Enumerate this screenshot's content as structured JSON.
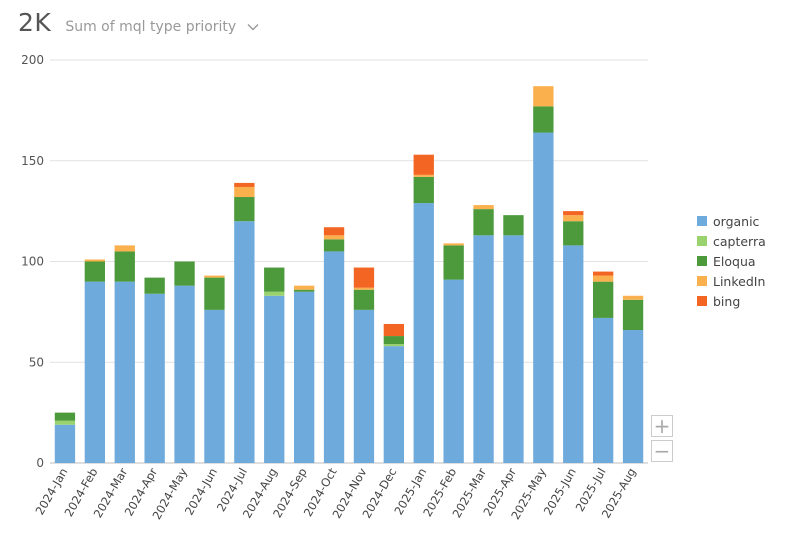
{
  "header": {
    "total": "2K",
    "metric_label": "Sum of mql type priority"
  },
  "zoom": {
    "in_label": "+",
    "out_label": "−"
  },
  "chart_data": {
    "type": "bar",
    "stacked": true,
    "categories": [
      "2024-Jan",
      "2024-Feb",
      "2024-Mar",
      "2024-Apr",
      "2024-May",
      "2024-Jun",
      "2024-Jul",
      "2024-Aug",
      "2024-Sep",
      "2024-Oct",
      "2024-Nov",
      "2024-Dec",
      "2025-Jan",
      "2025-Feb",
      "2025-Mar",
      "2025-Apr",
      "2025-May",
      "2025-Jun",
      "2025-Jul",
      "2025-Aug"
    ],
    "series": [
      {
        "name": "organic",
        "color": "#6eaadc",
        "values": [
          19,
          90,
          90,
          84,
          88,
          76,
          120,
          83,
          85,
          105,
          76,
          58,
          129,
          91,
          113,
          113,
          164,
          108,
          72,
          66
        ]
      },
      {
        "name": "capterra",
        "color": "#9ad26e",
        "values": [
          2,
          0,
          0,
          0,
          0,
          0,
          0,
          2,
          0,
          0,
          0,
          1,
          0,
          0,
          0,
          0,
          0,
          0,
          0,
          0
        ]
      },
      {
        "name": "Eloqua",
        "color": "#4c9a3c",
        "values": [
          4,
          10,
          15,
          8,
          12,
          16,
          12,
          12,
          1,
          6,
          10,
          4,
          13,
          17,
          13,
          10,
          13,
          12,
          18,
          15
        ]
      },
      {
        "name": "LinkedIn",
        "color": "#fbb04e",
        "values": [
          0,
          1,
          3,
          0,
          0,
          1,
          5,
          0,
          2,
          2,
          1,
          0,
          1,
          1,
          2,
          0,
          10,
          3,
          3,
          2
        ]
      },
      {
        "name": "bing",
        "color": "#f26522",
        "values": [
          0,
          0,
          0,
          0,
          0,
          0,
          2,
          0,
          0,
          4,
          10,
          6,
          10,
          0,
          0,
          0,
          0,
          2,
          2,
          0
        ]
      }
    ],
    "ylim": [
      0,
      200
    ],
    "yticks": [
      0,
      50,
      100,
      150,
      200
    ],
    "grid": true,
    "legend_position": "right"
  }
}
